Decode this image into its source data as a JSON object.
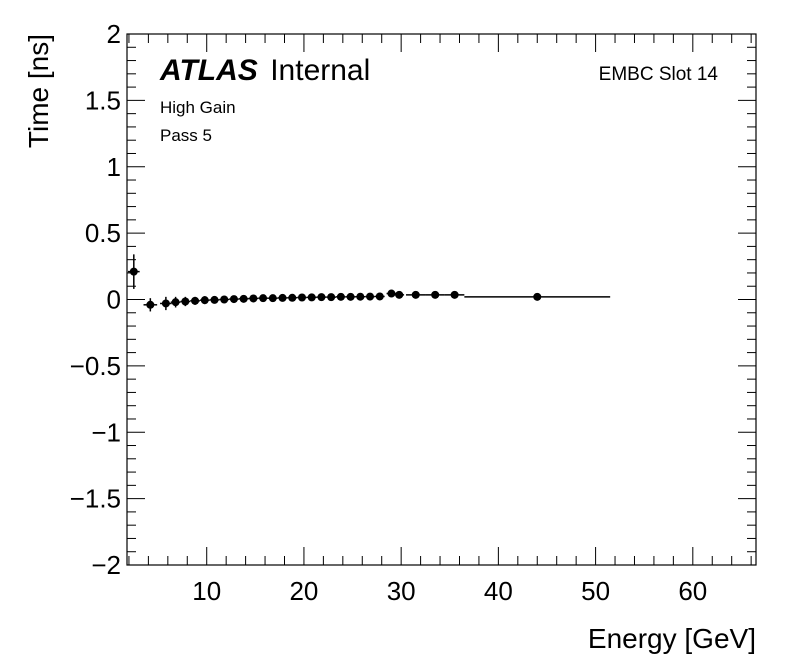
{
  "chart_data": {
    "type": "scatter",
    "xlabel": "Energy [GeV]",
    "ylabel": "Time [ns]",
    "xlim": [
      1.8,
      66.5
    ],
    "ylim": [
      -2,
      2
    ],
    "x_ticks": [
      10,
      20,
      30,
      40,
      50,
      60
    ],
    "x_tick_labels": [
      "10",
      "20",
      "30",
      "40",
      "50",
      "60"
    ],
    "y_ticks": [
      -2,
      -1.5,
      -1,
      -0.5,
      0,
      0.5,
      1,
      1.5,
      2
    ],
    "y_tick_labels": [
      "−2",
      "−1.5",
      "−1",
      "−0.5",
      "0",
      "0.5",
      "1",
      "1.5",
      "2"
    ],
    "annotations": {
      "atlas": "ATLAS",
      "atlas_status": "Internal",
      "gain": "High Gain",
      "pass": "Pass 5",
      "slot": "EMBC Slot 14"
    },
    "grid": false,
    "series": [
      {
        "points": [
          {
            "x": 2.5,
            "y": 0.21,
            "xerr": 0.6,
            "yerr": 0.13
          },
          {
            "x": 4.2,
            "y": -0.04,
            "xerr": 0.7,
            "yerr": 0.05
          },
          {
            "x": 5.8,
            "y": -0.03,
            "xerr": 0.6,
            "yerr": 0.05
          },
          {
            "x": 6.8,
            "y": -0.02,
            "xerr": 0.5,
            "yerr": 0.04
          },
          {
            "x": 7.8,
            "y": -0.015,
            "xerr": 0.5,
            "yerr": 0.035
          },
          {
            "x": 8.8,
            "y": -0.01,
            "xerr": 0.5,
            "yerr": 0.03
          },
          {
            "x": 9.8,
            "y": -0.005,
            "xerr": 0.5,
            "yerr": 0.03
          },
          {
            "x": 10.8,
            "y": -0.003,
            "xerr": 0.5,
            "yerr": 0.025
          },
          {
            "x": 11.8,
            "y": 0.0,
            "xerr": 0.5,
            "yerr": 0.025
          },
          {
            "x": 12.8,
            "y": 0.003,
            "xerr": 0.5,
            "yerr": 0.02
          },
          {
            "x": 13.8,
            "y": 0.005,
            "xerr": 0.5,
            "yerr": 0.02
          },
          {
            "x": 14.8,
            "y": 0.008,
            "xerr": 0.5,
            "yerr": 0.02
          },
          {
            "x": 15.8,
            "y": 0.01,
            "xerr": 0.5,
            "yerr": 0.02
          },
          {
            "x": 16.8,
            "y": 0.01,
            "xerr": 0.5,
            "yerr": 0.02
          },
          {
            "x": 17.8,
            "y": 0.012,
            "xerr": 0.5,
            "yerr": 0.02
          },
          {
            "x": 18.8,
            "y": 0.013,
            "xerr": 0.5,
            "yerr": 0.02
          },
          {
            "x": 19.8,
            "y": 0.015,
            "xerr": 0.5,
            "yerr": 0.02
          },
          {
            "x": 20.8,
            "y": 0.016,
            "xerr": 0.5,
            "yerr": 0.02
          },
          {
            "x": 21.8,
            "y": 0.018,
            "xerr": 0.5,
            "yerr": 0.02
          },
          {
            "x": 22.8,
            "y": 0.018,
            "xerr": 0.5,
            "yerr": 0.02
          },
          {
            "x": 23.8,
            "y": 0.02,
            "xerr": 0.5,
            "yerr": 0.02
          },
          {
            "x": 24.8,
            "y": 0.02,
            "xerr": 0.5,
            "yerr": 0.02
          },
          {
            "x": 25.8,
            "y": 0.021,
            "xerr": 0.5,
            "yerr": 0.02
          },
          {
            "x": 26.8,
            "y": 0.022,
            "xerr": 0.5,
            "yerr": 0.02
          },
          {
            "x": 27.8,
            "y": 0.023,
            "xerr": 0.5,
            "yerr": 0.02
          },
          {
            "x": 29.0,
            "y": 0.045,
            "xerr": 0.5,
            "yerr": 0.02
          },
          {
            "x": 29.8,
            "y": 0.035,
            "xerr": 0.5,
            "yerr": 0.02
          },
          {
            "x": 31.5,
            "y": 0.035,
            "xerr": 1.0,
            "yerr": 0.015
          },
          {
            "x": 33.5,
            "y": 0.035,
            "xerr": 1.0,
            "yerr": 0.015
          },
          {
            "x": 35.5,
            "y": 0.035,
            "xerr": 1.0,
            "yerr": 0.015
          },
          {
            "x": 44.0,
            "y": 0.02,
            "xerr": 7.5,
            "yerr": 0.015
          }
        ]
      }
    ]
  }
}
